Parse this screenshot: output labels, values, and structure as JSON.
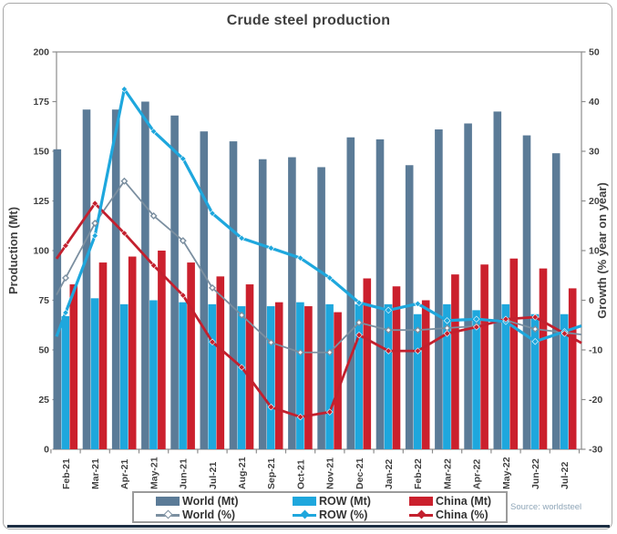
{
  "title": "Crude steel production",
  "source_note": "Source: worldsteel",
  "colors": {
    "frame_border": "#a8a8a8",
    "plot_border": "#8c8c8c",
    "text": "#3f3f3f",
    "legend_border": "#9b9b9b",
    "source_text": "#8fa6b8",
    "bottom_rule": "#1d2f44",
    "world_bar": "#5b7b97",
    "row_bar": "#1ea7dd",
    "china_bar": "#cb202d",
    "world_line": "#7b8fa0",
    "row_line": "#1ea7dd",
    "china_line": "#c3202e"
  },
  "chart_data": {
    "type": "bar+line combo, dual axis",
    "grid": false,
    "legend_position": "bottom",
    "categories": [
      "Feb-21",
      "Mar-21",
      "Apr-21",
      "May-21",
      "Jun-21",
      "Jul-21",
      "Aug-21",
      "Sep-21",
      "Oct-21",
      "Nov-21",
      "Dec-21",
      "Jan-22",
      "Feb-22",
      "Mar-22",
      "Apr-22",
      "May-22",
      "Jun-22",
      "Jul-22"
    ],
    "left_axis": {
      "label": "Production (Mt)",
      "min": 0,
      "max": 200,
      "step": 25
    },
    "right_axis": {
      "label": "Growth (% year on year)",
      "min": -30,
      "max": 50,
      "step": 10
    },
    "series": [
      {
        "name": "World (Mt)",
        "kind": "bar",
        "axis": "left",
        "color": "#5b7b97",
        "values": [
          151,
          171,
          171,
          175,
          168,
          160,
          155,
          146,
          147,
          142,
          157,
          156,
          143,
          161,
          164,
          170,
          158,
          149
        ]
      },
      {
        "name": "ROW (Mt)",
        "kind": "bar",
        "axis": "left",
        "color": "#1ea7dd",
        "values": [
          67,
          76,
          73,
          75,
          74,
          73,
          72,
          72,
          74,
          73,
          73,
          73,
          68,
          73,
          70,
          73,
          68,
          68
        ]
      },
      {
        "name": "China (Mt)",
        "kind": "bar",
        "axis": "left",
        "color": "#cb202d",
        "values": [
          83,
          94,
          97,
          100,
          94,
          87,
          83,
          74,
          72,
          69,
          86,
          82,
          75,
          88,
          93,
          96,
          91,
          81
        ]
      },
      {
        "name": "World (%)",
        "kind": "line",
        "axis": "right",
        "color": "#7b8fa0",
        "marker": "open-diamond",
        "values": [
          4.5,
          15.5,
          24,
          17,
          12,
          2.5,
          -3,
          -8.5,
          -10.5,
          -10.5,
          -4.5,
          -6,
          -6,
          -5.6,
          -5.2,
          -4,
          -5.8,
          -6.5
        ]
      },
      {
        "name": "ROW (%)",
        "kind": "line",
        "axis": "right",
        "color": "#1ea7dd",
        "marker": "diamond",
        "values": [
          -2.5,
          13,
          42.5,
          34,
          28.5,
          17.5,
          12.5,
          10.5,
          8.5,
          4.5,
          -0.5,
          -2,
          -0.7,
          -4.1,
          -3.8,
          -4.3,
          -8.3,
          -6.3
        ]
      },
      {
        "name": "China (%)",
        "kind": "line",
        "axis": "right",
        "color": "#c3202e",
        "marker": "diamond",
        "values": [
          11,
          19.5,
          13.5,
          7,
          1,
          -8.4,
          -13.5,
          -21.5,
          -23.5,
          -22.5,
          -7,
          -10.2,
          -10.2,
          -6.7,
          -5.4,
          -3.8,
          -3.4,
          -6.7
        ]
      }
    ]
  }
}
